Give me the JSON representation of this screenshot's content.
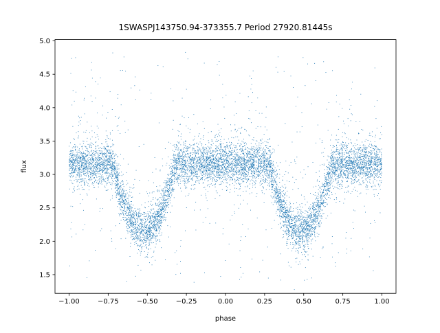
{
  "chart_data": {
    "type": "scatter",
    "title": "1SWASPJ143750.94-373355.7 Period 27920.81445s",
    "xlabel": "phase",
    "ylabel": "flux",
    "xlim": [
      -1.09,
      1.09
    ],
    "ylim": [
      1.22,
      5.02
    ],
    "xticks": [
      -1.0,
      -0.75,
      -0.5,
      -0.25,
      0.0,
      0.25,
      0.5,
      0.75,
      1.0
    ],
    "xtick_labels": [
      "−1.00",
      "−0.75",
      "−0.50",
      "−0.25",
      "0.00",
      "0.25",
      "0.50",
      "0.75",
      "1.00"
    ],
    "yticks": [
      1.5,
      2.0,
      2.5,
      3.0,
      3.5,
      4.0,
      4.5,
      5.0
    ],
    "ytick_labels": [
      "1.5",
      "2.0",
      "2.5",
      "3.0",
      "3.5",
      "4.0",
      "4.5",
      "5.0"
    ],
    "grid": false,
    "legend": "none",
    "marker_color": "#1f77b4",
    "series": [
      {
        "baseline_flux": 3.15,
        "scatter_sigma": 0.15,
        "x_range": [
          -1.0,
          1.0
        ],
        "eclipses": [
          {
            "phase_center": -0.52,
            "min_flux": 2.15,
            "half_width": 0.2
          },
          {
            "phase_center": 0.48,
            "min_flux": 2.15,
            "half_width": 0.2
          }
        ],
        "outlier_flux_range": [
          1.4,
          4.85
        ],
        "n_points": 9000
      }
    ]
  }
}
